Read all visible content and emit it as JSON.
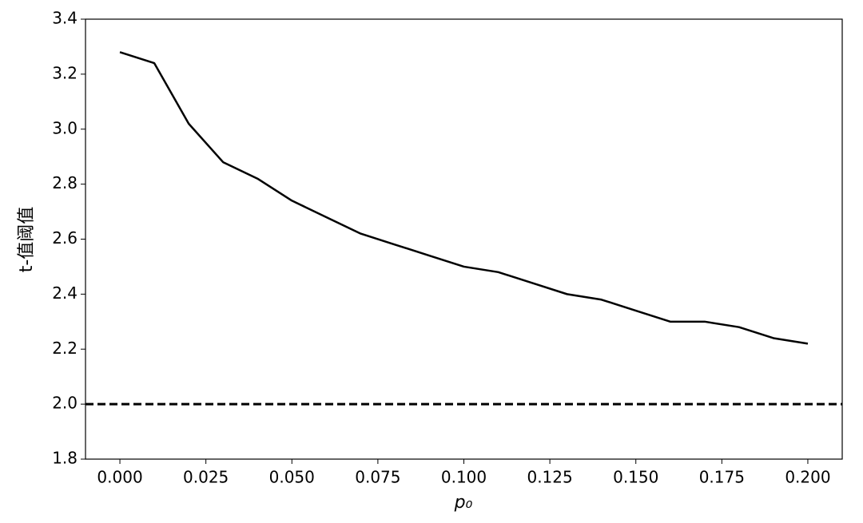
{
  "chart_data": {
    "type": "line",
    "xlabel": "p₀",
    "ylabel": "t-值阈值",
    "x": [
      0,
      0.01,
      0.02,
      0.03,
      0.04,
      0.05,
      0.06,
      0.07,
      0.08,
      0.09,
      0.1,
      0.11,
      0.12,
      0.13,
      0.14,
      0.15,
      0.16,
      0.17,
      0.18,
      0.19,
      0.2
    ],
    "series": [
      {
        "color": "#000000",
        "values": [
          3.28,
          3.24,
          3.02,
          2.88,
          2.82,
          2.74,
          2.68,
          2.62,
          2.58,
          2.54,
          2.5,
          2.48,
          2.44,
          2.4,
          2.38,
          2.34,
          2.3,
          2.3,
          2.28,
          2.24,
          2.22
        ]
      }
    ],
    "hline": {
      "value": 2,
      "color": "#000000",
      "style": "dashed"
    },
    "xlim": [
      -0.01,
      0.21
    ],
    "xticks": [
      {
        "value": 0,
        "label": "0.000"
      },
      0.025,
      {
        "value": 0.05,
        "label": "0.050"
      },
      0.075,
      {
        "value": 0.1,
        "label": "0.100"
      },
      0.125,
      {
        "value": 0.15,
        "label": "0.150"
      },
      0.175,
      {
        "value": 0.2,
        "label": "0.200"
      }
    ],
    "ylim": [
      1.8,
      3.4
    ],
    "yticks": [
      1.8,
      {
        "value": 2,
        "label": "2.0"
      },
      2.2,
      2.4,
      2.6,
      2.8,
      {
        "value": 3,
        "label": "3.0"
      },
      3.2,
      3.4
    ],
    "grid": false
  }
}
